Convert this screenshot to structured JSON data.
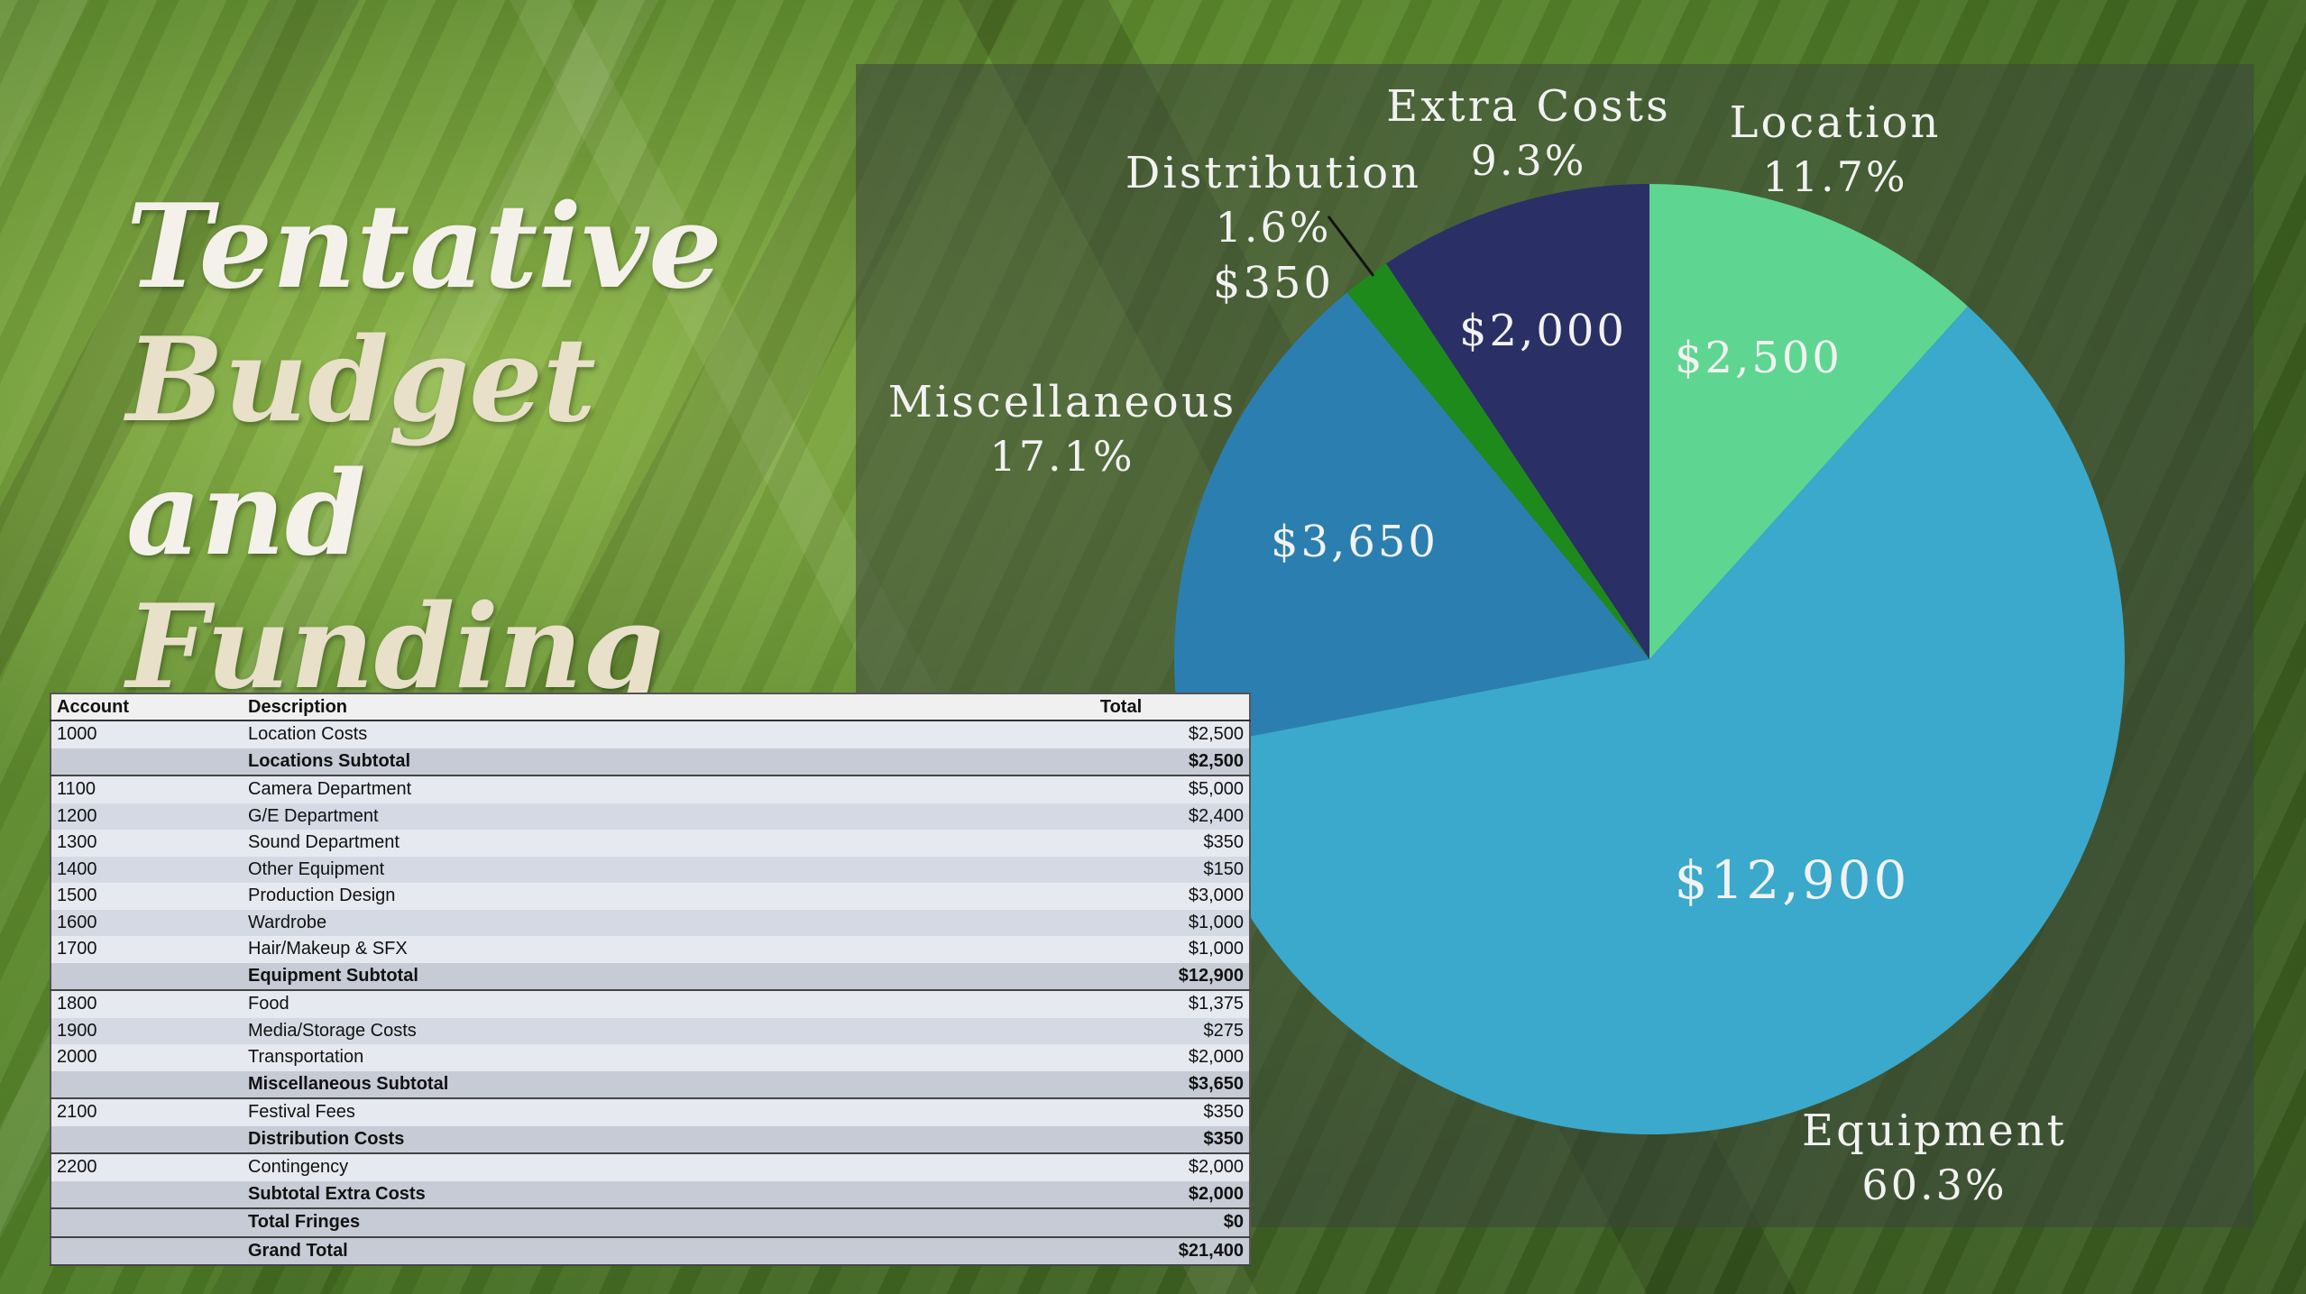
{
  "title": {
    "line1": "Tentative",
    "line2a": "Budget",
    "line2b": " and",
    "line3": "Funding"
  },
  "chart_data": {
    "type": "pie",
    "slices": [
      {
        "name": "Location",
        "value": 2500,
        "value_label": "$2,500",
        "percent_label": "11.7%",
        "color": "#5ed692"
      },
      {
        "name": "Equipment",
        "value": 12900,
        "value_label": "$12,900",
        "percent_label": "60.3%",
        "color": "#3aa9cc"
      },
      {
        "name": "Miscellaneous",
        "value": 3650,
        "value_label": "$3,650",
        "percent_label": "17.1%",
        "color": "#2b7fb0"
      },
      {
        "name": "Distribution",
        "value": 350,
        "value_label": "$350",
        "percent_label": "1.6%",
        "color": "#1f8a1c"
      },
      {
        "name": "Extra Costs",
        "value": 2000,
        "value_label": "$2,000",
        "percent_label": "9.3%",
        "color": "#2a2f66"
      }
    ]
  },
  "table": {
    "headers": [
      "Account",
      "Description",
      "Total"
    ],
    "rows": [
      {
        "account": "1000",
        "desc": "Location Costs",
        "total": "$2,500",
        "subtotal": false
      },
      {
        "account": "",
        "desc": "Locations Subtotal",
        "total": "$2,500",
        "subtotal": true
      },
      {
        "account": "1100",
        "desc": "Camera Department",
        "total": "$5,000",
        "subtotal": false
      },
      {
        "account": "1200",
        "desc": "G/E Department",
        "total": "$2,400",
        "subtotal": false
      },
      {
        "account": "1300",
        "desc": "Sound Department",
        "total": "$350",
        "subtotal": false
      },
      {
        "account": "1400",
        "desc": "Other Equipment",
        "total": "$150",
        "subtotal": false
      },
      {
        "account": "1500",
        "desc": "Production Design",
        "total": "$3,000",
        "subtotal": false
      },
      {
        "account": "1600",
        "desc": "Wardrobe",
        "total": "$1,000",
        "subtotal": false
      },
      {
        "account": "1700",
        "desc": "Hair/Makeup & SFX",
        "total": "$1,000",
        "subtotal": false
      },
      {
        "account": "",
        "desc": "Equipment Subtotal",
        "total": "$12,900",
        "subtotal": true
      },
      {
        "account": "1800",
        "desc": "Food",
        "total": "$1,375",
        "subtotal": false
      },
      {
        "account": "1900",
        "desc": "Media/Storage Costs",
        "total": "$275",
        "subtotal": false
      },
      {
        "account": "2000",
        "desc": "Transportation",
        "total": "$2,000",
        "subtotal": false
      },
      {
        "account": "",
        "desc": "Miscellaneous Subtotal",
        "total": "$3,650",
        "subtotal": true
      },
      {
        "account": "2100",
        "desc": "Festival Fees",
        "total": "$350",
        "subtotal": false
      },
      {
        "account": "",
        "desc": "Distribution Costs",
        "total": "$350",
        "subtotal": true
      },
      {
        "account": "2200",
        "desc": "Contingency",
        "total": "$2,000",
        "subtotal": false
      },
      {
        "account": "",
        "desc": "Subtotal Extra Costs",
        "total": "$2,000",
        "subtotal": true
      },
      {
        "account": "",
        "desc": "Total Fringes",
        "total": "$0",
        "subtotal": true
      },
      {
        "account": "",
        "desc": "Grand Total",
        "total": "$21,400",
        "subtotal": true
      }
    ]
  }
}
